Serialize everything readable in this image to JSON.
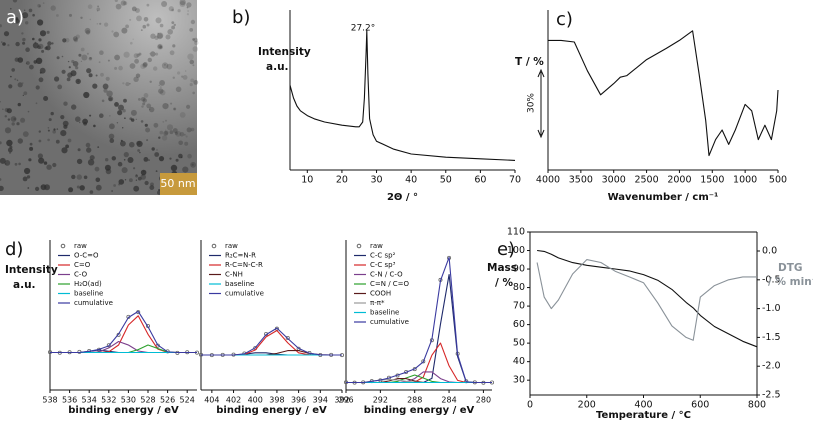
{
  "image_panel": {
    "panel": "a)",
    "scale_bar": "50 nm"
  },
  "chart_data": [
    {
      "type": "line",
      "panel": "b)",
      "y_label": [
        "Intensity",
        "a.u."
      ],
      "x_label": "2Θ / °",
      "annotation": "27.2°",
      "x": [
        5,
        6,
        7,
        8,
        10,
        12,
        15,
        20,
        24,
        25,
        26,
        26.5,
        27,
        27.2,
        27.5,
        28,
        29,
        30,
        35,
        40,
        50,
        60,
        70
      ],
      "series": [
        {
          "color": "#111111",
          "values": [
            53,
            45,
            40,
            37,
            34,
            32,
            30,
            28,
            27,
            27,
            30,
            45,
            75,
            87,
            60,
            32,
            22,
            18,
            13,
            10,
            8,
            7,
            6
          ]
        }
      ],
      "xlim": [
        5,
        70
      ],
      "xticks": [
        10,
        20,
        30,
        40,
        50,
        60,
        70
      ],
      "ylim": [
        0,
        100
      ]
    },
    {
      "type": "line",
      "panel": "c)",
      "y_label": [
        "T / %"
      ],
      "x_label": "Wavenumber / cm⁻¹",
      "scale_label": "30%",
      "x": [
        4000,
        3800,
        3600,
        3400,
        3200,
        3000,
        2900,
        2800,
        2500,
        2200,
        2000,
        1800,
        1700,
        1600,
        1550,
        1450,
        1350,
        1250,
        1150,
        1000,
        900,
        800,
        700,
        600,
        520,
        500
      ],
      "series": [
        {
          "color": "#111111",
          "values": [
            81,
            81,
            80,
            62,
            47,
            54,
            58,
            59,
            69,
            76,
            81,
            87,
            60,
            31,
            9,
            19,
            25,
            16,
            25,
            41,
            37,
            19,
            28,
            19,
            37,
            50
          ]
        }
      ],
      "xlim": [
        4000,
        500
      ],
      "xticks": [
        4000,
        3500,
        3000,
        2500,
        2000,
        1500,
        1000,
        500
      ],
      "ylim": [
        0,
        100
      ]
    },
    {
      "type": "line",
      "panel": "d)",
      "y_label": [
        "Intensity",
        "a.u."
      ],
      "x_label": "binding energy / eV",
      "legend": "upper left",
      "x": [
        538,
        537,
        536,
        535,
        534,
        533,
        532,
        531,
        530,
        529,
        528,
        527,
        526,
        525,
        524,
        523
      ],
      "series": [
        {
          "name": "raw",
          "color": "#666666",
          "marker": true,
          "values": [
            10.3,
            9.8,
            10.2,
            10.5,
            11.2,
            12.2,
            15.8,
            24.1,
            38.5,
            42.3,
            31.2,
            15.5,
            10.9,
            9.7,
            10.2,
            9.9
          ]
        },
        {
          "name": "O-C=O",
          "color": "#1f2a6b",
          "values": [
            10,
            10,
            10,
            10,
            11,
            12,
            11,
            10,
            10,
            10,
            10,
            10,
            10,
            10,
            10,
            10
          ]
        },
        {
          "name": "C=O",
          "color": "#d62728",
          "values": [
            10,
            10,
            10,
            10,
            10,
            10,
            10.6,
            16,
            32,
            39.4,
            24.6,
            12.7,
            10.2,
            10,
            10,
            10
          ]
        },
        {
          "name": "C-O",
          "color": "#7b3f8c",
          "values": [
            10,
            10,
            10,
            10,
            10,
            10.5,
            13.7,
            18.8,
            16,
            11.2,
            10,
            10,
            10,
            10,
            10,
            10
          ]
        },
        {
          "name": "H₂O(ad)",
          "color": "#2ca02c",
          "values": [
            10,
            10,
            10,
            10,
            10,
            10,
            10,
            10,
            10,
            12.3,
            16,
            13.2,
            10.4,
            10,
            10,
            10
          ]
        },
        {
          "name": "baseline",
          "color": "#00bcd4",
          "values": [
            10,
            10,
            10,
            10,
            10,
            10,
            10,
            10,
            10,
            10,
            10,
            10,
            10,
            10,
            10,
            10
          ]
        },
        {
          "name": "cumulative",
          "color": "#3a3aa0",
          "values": [
            10,
            10,
            10,
            10,
            11,
            12.5,
            15.3,
            24.8,
            38,
            42.9,
            30.6,
            15.9,
            10.6,
            10,
            10,
            10
          ]
        }
      ],
      "xlim": [
        538,
        523
      ],
      "xticks": [
        538,
        536,
        534,
        532,
        530,
        528,
        526,
        524
      ],
      "ylim": [
        -20,
        100
      ]
    },
    {
      "type": "line",
      "x_label": "binding energy / eV",
      "legend": "upper left",
      "x": [
        405,
        404,
        403,
        402,
        401,
        400,
        399,
        398,
        397,
        396,
        395,
        394,
        393,
        392
      ],
      "series": [
        {
          "name": "raw",
          "color": "#666666",
          "marker": true,
          "values": [
            8.2,
            7.9,
            8.1,
            8.3,
            9.2,
            13.5,
            24.8,
            29.1,
            21.6,
            13.0,
            9.6,
            8.0,
            8.1,
            7.9
          ]
        },
        {
          "name": "R₂C=N-R",
          "color": "#1f2a6b",
          "values": [
            8,
            8,
            8,
            8,
            8.6,
            9.8,
            9.8,
            8.6,
            8,
            8,
            8,
            8,
            8,
            8
          ]
        },
        {
          "name": "R-C=N-C-R",
          "color": "#d62728",
          "values": [
            8,
            8,
            8,
            8,
            8.4,
            12,
            22.5,
            27.6,
            17.7,
            9.8,
            8.1,
            8,
            8,
            8
          ]
        },
        {
          "name": "C-NH",
          "color": "#5a1a1a",
          "values": [
            8,
            8,
            8,
            8,
            8,
            8,
            8,
            9.3,
            11.5,
            11.5,
            9.3,
            8.2,
            8,
            8
          ]
        },
        {
          "name": "baseline",
          "color": "#00bcd4",
          "values": [
            8,
            8,
            8,
            8,
            8,
            8,
            8,
            8,
            8,
            8,
            8,
            8,
            8,
            8
          ]
        },
        {
          "name": "cumulative",
          "color": "#3a3aa0",
          "values": [
            8,
            8,
            8,
            8,
            9,
            13.8,
            24.3,
            29.5,
            21.2,
            13.3,
            9.4,
            8.2,
            8,
            8
          ]
        }
      ],
      "xlim": [
        405,
        392
      ],
      "xticks": [
        404,
        402,
        400,
        398,
        396,
        394,
        392
      ],
      "ylim": [
        -20,
        100
      ]
    },
    {
      "type": "line",
      "x_label": "binding energy / eV",
      "legend": "upper left",
      "x": [
        296,
        295,
        294,
        293,
        292,
        291,
        290,
        289,
        288,
        287,
        286,
        285,
        284,
        283,
        282,
        281,
        280,
        279
      ],
      "series": [
        {
          "name": "raw",
          "color": "#666666",
          "marker": true,
          "values": [
            5.2,
            4.9,
            5.1,
            5.9,
            6.4,
            8.2,
            9.7,
            12.0,
            13.9,
            19.1,
            33.2,
            73.4,
            88.1,
            24.2,
            5.8,
            5.1,
            4.8,
            5.0
          ]
        },
        {
          "name": "C-C sp²",
          "color": "#1f2a6b",
          "values": [
            5,
            5,
            5,
            5,
            5,
            5,
            5,
            5,
            5,
            5,
            7.7,
            44,
            77,
            22.3,
            5.5,
            5,
            5,
            5
          ]
        },
        {
          "name": "C-C sp³",
          "color": "#d62728",
          "values": [
            5,
            5,
            5,
            5,
            5,
            5,
            5,
            5,
            5.2,
            8.6,
            23.2,
            31.3,
            16.1,
            6.4,
            5,
            5,
            5,
            5
          ]
        },
        {
          "name": "C-N / C-O",
          "color": "#7b3f8c",
          "values": [
            5,
            5,
            5,
            5,
            5,
            5,
            5,
            5.4,
            7.6,
            12.1,
            12.1,
            7.6,
            5.4,
            5,
            5,
            5,
            5,
            5
          ]
        },
        {
          "name": "C=N / C=O",
          "color": "#2ca02c",
          "values": [
            5,
            5,
            5,
            5,
            5,
            5,
            5.7,
            8,
            10,
            8,
            5.7,
            5,
            5,
            5,
            5,
            5,
            5,
            5
          ]
        },
        {
          "name": "COOH",
          "color": "#5a1a1a",
          "values": [
            5,
            5,
            5,
            5,
            5,
            6,
            7.6,
            7.6,
            6,
            5.1,
            5,
            5,
            5,
            5,
            5,
            5,
            5,
            5
          ]
        },
        {
          "name": "π-π*",
          "color": "#9a9a9a",
          "values": [
            5,
            5,
            5,
            5.8,
            6.6,
            7,
            6.6,
            5.8,
            5.3,
            5,
            5,
            5,
            5,
            5,
            5,
            5,
            5,
            5
          ]
        },
        {
          "name": "baseline",
          "color": "#00bcd4",
          "values": [
            5,
            5,
            5,
            5,
            5,
            5,
            5,
            5,
            5,
            5,
            5,
            5,
            5,
            5,
            5,
            5,
            5,
            5
          ]
        },
        {
          "name": "cumulative",
          "color": "#3a3aa0",
          "values": [
            5,
            5,
            5,
            5.8,
            6.6,
            8,
            9.9,
            11.8,
            14.1,
            18.8,
            33.7,
            72.9,
            88.5,
            23.7,
            5.5,
            5,
            5,
            5
          ]
        }
      ],
      "xlim": [
        296,
        279
      ],
      "xticks": [
        296,
        292,
        288,
        284,
        280
      ],
      "ylim": [
        0,
        100
      ]
    },
    {
      "type": "line",
      "panel": "e)",
      "y_label": [
        "Mass",
        "/ %"
      ],
      "y2_label": [
        "DTG",
        "/ % min⁻¹"
      ],
      "x_label": "Temperature / °C",
      "frame": true,
      "x": [
        25,
        50,
        75,
        100,
        150,
        200,
        250,
        300,
        350,
        400,
        450,
        500,
        550,
        575,
        600,
        650,
        700,
        750,
        800
      ],
      "series": [
        {
          "color": "#111111",
          "values": [
            100,
            99.5,
            98,
            96,
            93.5,
            92,
            91,
            90,
            89,
            87,
            84,
            79,
            72,
            69,
            65,
            59,
            55,
            51,
            48
          ]
        },
        {
          "color": "#8a9299",
          "axis": "y2",
          "values": [
            -0.2,
            -0.8,
            -1.0,
            -0.85,
            -0.4,
            -0.15,
            -0.2,
            -0.35,
            -0.45,
            -0.55,
            -0.9,
            -1.3,
            -1.5,
            -1.55,
            -0.8,
            -0.6,
            -0.5,
            -0.45,
            -0.45
          ]
        }
      ],
      "xlim": [
        0,
        800
      ],
      "xticks": [
        0,
        200,
        400,
        600,
        800
      ],
      "ylim": [
        22,
        110
      ],
      "yticks": [
        30,
        40,
        50,
        60,
        70,
        80,
        90,
        100,
        110
      ],
      "y2lim": [
        -2.5,
        0.33
      ],
      "y2ticks": [
        {
          "value": 0,
          "label": "0.0"
        },
        -0.5,
        {
          "value": -1,
          "label": "-1.0"
        },
        -1.5,
        {
          "value": -2,
          "label": "-2.0"
        },
        -2.5
      ]
    }
  ]
}
